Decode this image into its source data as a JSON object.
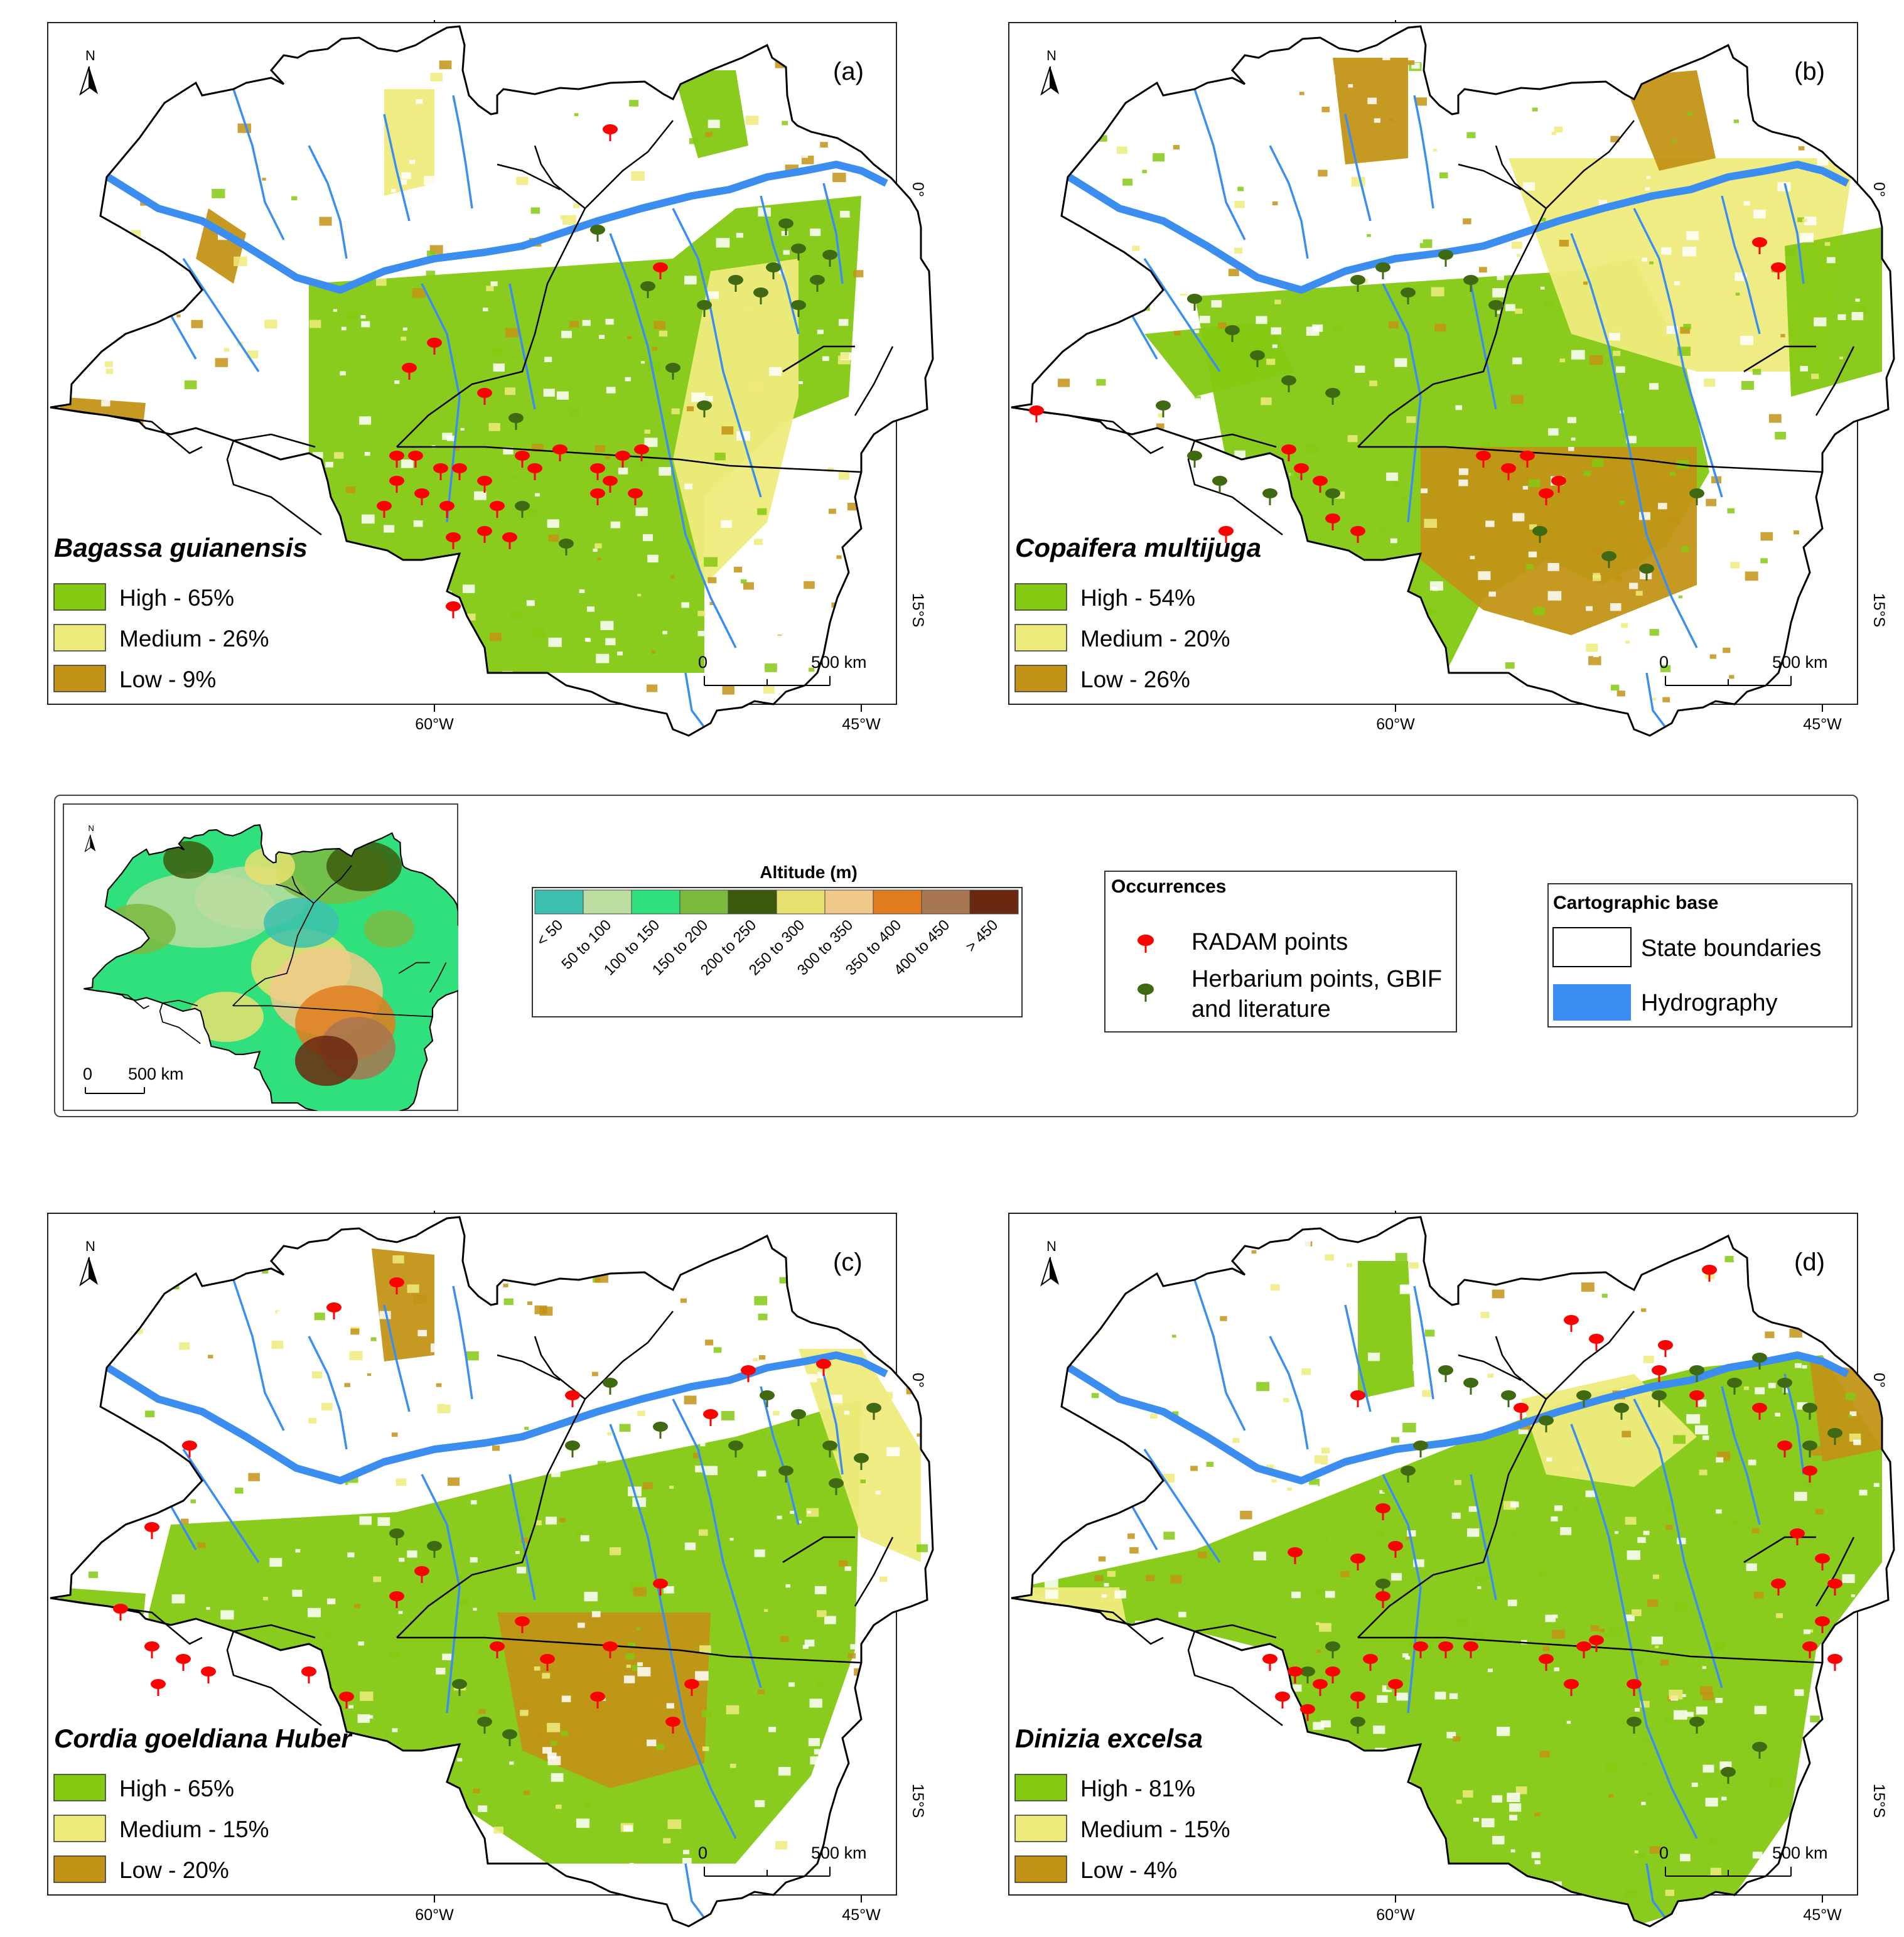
{
  "panels": [
    {
      "letter": "(a)",
      "species": "Bagassa guianensis",
      "legend": [
        {
          "label": "High - 65%",
          "color": "#84c912"
        },
        {
          "label": "Medium - 26%",
          "color": "#eeeb7d"
        },
        {
          "label": "Low - 9%",
          "color": "#c29316"
        }
      ]
    },
    {
      "letter": "(b)",
      "species": "Copaifera multijuga",
      "legend": [
        {
          "label": "High - 54%",
          "color": "#84c912"
        },
        {
          "label": "Medium - 20%",
          "color": "#eeeb7d"
        },
        {
          "label": "Low - 26%",
          "color": "#c29316"
        }
      ]
    },
    {
      "letter": "(c)",
      "species": "Cordia goeldiana Huber",
      "legend": [
        {
          "label": "High - 65%",
          "color": "#84c912"
        },
        {
          "label": "Medium - 15%",
          "color": "#eeeb7d"
        },
        {
          "label": "Low - 20%",
          "color": "#c29316"
        }
      ]
    },
    {
      "letter": "(d)",
      "species": "Dinizia excelsa",
      "legend": [
        {
          "label": "High - 81%",
          "color": "#84c912"
        },
        {
          "label": "Medium - 15%",
          "color": "#eeeb7d"
        },
        {
          "label": "Low - 4%",
          "color": "#c29316"
        }
      ]
    }
  ],
  "axes": {
    "lat_top": "0°",
    "lat_bottom": "15°S",
    "lon_left": "60°W",
    "lon_right": "45°W"
  },
  "north_label": "N",
  "scale": {
    "zero": "0",
    "distance": "500 km"
  },
  "altitude_legend": {
    "title": "Altitude (m)",
    "classes": [
      {
        "label": "< 50",
        "color": "#3cbfae"
      },
      {
        "label": "50 to 100",
        "color": "#bcdca0"
      },
      {
        "label": "100 to 150",
        "color": "#2fe07d"
      },
      {
        "label": "150 to 200",
        "color": "#7cba3f"
      },
      {
        "label": "200 to 250",
        "color": "#3c5a0c"
      },
      {
        "label": "250 to 300",
        "color": "#e8e06e"
      },
      {
        "label": "300 to 350",
        "color": "#f0c98a"
      },
      {
        "label": "350 to 400",
        "color": "#e07b1e"
      },
      {
        "label": "400 to 450",
        "color": "#a87650"
      },
      {
        "label": "> 450",
        "color": "#6b2810"
      }
    ]
  },
  "occurrences": {
    "title": "Occurrences",
    "radam": "RADAM points",
    "radam_color": "#ff0000",
    "herbarium_line1": "Herbarium points, GBIF",
    "herbarium_line2": "and literature",
    "herbarium_color": "#3f6a12"
  },
  "cartographic_base": {
    "title": "Cartographic base",
    "states": "State boundaries",
    "hydro": "Hydrography",
    "hydro_color": "#3b8ef0"
  },
  "inset_scale": {
    "zero": "0",
    "distance": "500 km"
  }
}
